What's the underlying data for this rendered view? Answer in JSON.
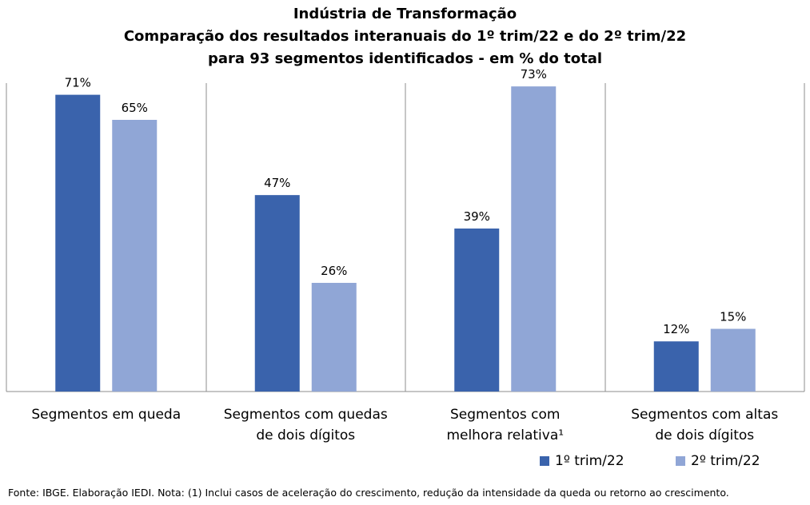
{
  "title_lines": [
    "Indústria de Transformação",
    "Comparação dos resultados interanuais do 1º trim/22 e do 2º trim/22",
    "para 93 segmentos identificados - em % do total"
  ],
  "footer": "Fonte: IBGE. Elaboração IEDI. Nota: (1) Inclui casos de aceleração do crescimento, redução da intensidade da queda ou retorno  ao crescimento.",
  "colors": {
    "series1": "#3a63ac",
    "series2": "#90a6d6",
    "axis": "#8c8c8c"
  },
  "chart_data": {
    "type": "bar",
    "categories": [
      [
        "Segmentos em queda"
      ],
      [
        "Segmentos com quedas",
        "de dois dígitos"
      ],
      [
        "Segmentos com",
        "melhora relativa¹"
      ],
      [
        "Segmentos com altas",
        "de dois dígitos"
      ]
    ],
    "series": [
      {
        "name": "1º trim/22",
        "values": [
          71,
          47,
          39,
          12
        ],
        "labels": [
          "71%",
          "47%",
          "39%",
          "12%"
        ]
      },
      {
        "name": "2º trim/22",
        "values": [
          65,
          26,
          73,
          15
        ],
        "labels": [
          "65%",
          "26%",
          "73%",
          "15%"
        ]
      }
    ],
    "unit": "%",
    "ylim": [
      0,
      80
    ],
    "grid": false,
    "legend": "bottom-right"
  }
}
